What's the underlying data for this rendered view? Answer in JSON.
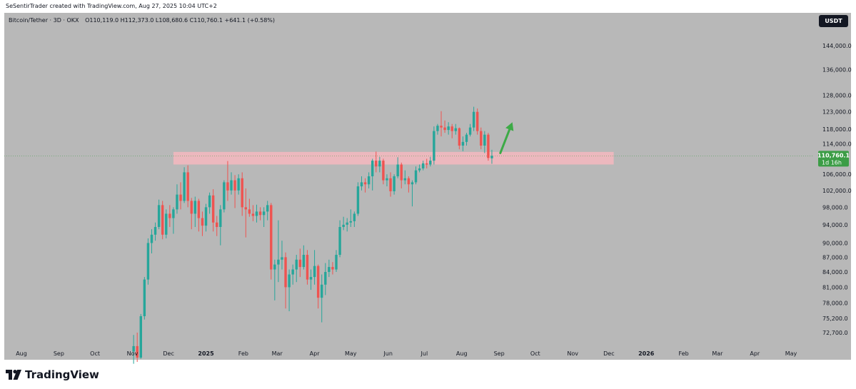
{
  "header": {
    "attribution": "SeSentirTrader created with TradingView.com, Aug 27, 2025 10:04 UTC+2"
  },
  "legend": {
    "symbol": "Bitcoin/Tether · 3D · OKX",
    "open": "O110,119.0",
    "high": "H112,373.0",
    "low": "L108,680.6",
    "close": "C110,760.1",
    "change": "+641.1 (+0.58%)"
  },
  "currency_button": "USDT",
  "price_label": {
    "price": "110,760.1",
    "countdown": "1d 16h"
  },
  "footer": {
    "brand": "TradingView"
  },
  "colors": {
    "background": "#b8b8b8",
    "up": "#26a69a",
    "down": "#ef5350",
    "zone": "#f4b7be",
    "arrow": "#3daa46",
    "price_badge": "#3c9d46"
  },
  "chart_data": {
    "type": "candlestick",
    "symbol": "Bitcoin/Tether",
    "timeframe": "3D",
    "exchange": "OKX",
    "y_scale": "log",
    "y_ticks": [
      "144,000.0",
      "136,000.0",
      "128,000.0",
      "123,000.0",
      "118,000.0",
      "114,000.0",
      "110,760.1",
      "106,000.0",
      "102,000.0",
      "98,000.0",
      "94,000.0",
      "90,000.0",
      "87,000.0",
      "84,000.0",
      "81,000.0",
      "78,000.0",
      "75,200.0",
      "72,700.0"
    ],
    "y_tick_values": [
      144000,
      136000,
      128000,
      123000,
      118000,
      114000,
      106000,
      102000,
      98000,
      94000,
      90000,
      87000,
      84000,
      81000,
      78000,
      75200,
      72700
    ],
    "x_ticks": [
      {
        "label": "Aug",
        "date": "2024-08-01"
      },
      {
        "label": "Sep",
        "date": "2024-09-01"
      },
      {
        "label": "Oct",
        "date": "2024-10-01"
      },
      {
        "label": "Nov",
        "date": "2024-11-01"
      },
      {
        "label": "Dec",
        "date": "2024-12-01"
      },
      {
        "label": "2025",
        "date": "2025-01-01",
        "bold": true
      },
      {
        "label": "Feb",
        "date": "2025-02-01"
      },
      {
        "label": "Mar",
        "date": "2025-03-01"
      },
      {
        "label": "Apr",
        "date": "2025-04-01"
      },
      {
        "label": "May",
        "date": "2025-05-01"
      },
      {
        "label": "Jun",
        "date": "2025-06-01"
      },
      {
        "label": "Jul",
        "date": "2025-07-01"
      },
      {
        "label": "Aug",
        "date": "2025-08-01"
      },
      {
        "label": "Sep",
        "date": "2025-09-01"
      },
      {
        "label": "Oct",
        "date": "2025-10-01"
      },
      {
        "label": "Nov",
        "date": "2025-11-01"
      },
      {
        "label": "Dec",
        "date": "2025-12-01"
      },
      {
        "label": "2026",
        "date": "2026-01-01",
        "bold": true
      },
      {
        "label": "Feb",
        "date": "2026-02-01"
      },
      {
        "label": "Mar",
        "date": "2026-03-01"
      },
      {
        "label": "Apr",
        "date": "2026-04-01"
      },
      {
        "label": "May",
        "date": "2026-05-01"
      }
    ],
    "last_price": 110760.1,
    "zone": {
      "from_date": "2024-12-05",
      "to_date": "2025-12-05",
      "low": 108500,
      "high": 111800
    },
    "arrow": {
      "from_date": "2025-09-02",
      "from_price": 111500,
      "to_date": "2025-09-12",
      "to_price": 120000
    },
    "candles": [
      {
        "t": "2024-11-02",
        "o": 69500,
        "h": 72300,
        "l": 67500,
        "c": 70400
      },
      {
        "t": "2024-11-05",
        "o": 70400,
        "h": 72700,
        "l": 67800,
        "c": 68500
      },
      {
        "t": "2024-11-08",
        "o": 68500,
        "h": 76000,
        "l": 68300,
        "c": 75600
      },
      {
        "t": "2024-11-11",
        "o": 75600,
        "h": 83000,
        "l": 75000,
        "c": 82500
      },
      {
        "t": "2024-11-14",
        "o": 82500,
        "h": 91000,
        "l": 81500,
        "c": 90000
      },
      {
        "t": "2024-11-17",
        "o": 90000,
        "h": 93000,
        "l": 87800,
        "c": 91800
      },
      {
        "t": "2024-11-20",
        "o": 91800,
        "h": 94500,
        "l": 90500,
        "c": 93500
      },
      {
        "t": "2024-11-23",
        "o": 93500,
        "h": 99800,
        "l": 93000,
        "c": 98500
      },
      {
        "t": "2024-11-26",
        "o": 98500,
        "h": 99500,
        "l": 90800,
        "c": 91800
      },
      {
        "t": "2024-11-29",
        "o": 91800,
        "h": 97500,
        "l": 91000,
        "c": 96500
      },
      {
        "t": "2024-12-02",
        "o": 96500,
        "h": 98500,
        "l": 93500,
        "c": 95500
      },
      {
        "t": "2024-12-05",
        "o": 95500,
        "h": 98000,
        "l": 92000,
        "c": 97500
      },
      {
        "t": "2024-12-08",
        "o": 97500,
        "h": 103500,
        "l": 96500,
        "c": 101000
      },
      {
        "t": "2024-12-11",
        "o": 101000,
        "h": 104000,
        "l": 97500,
        "c": 99500
      },
      {
        "t": "2024-12-14",
        "o": 99500,
        "h": 107800,
        "l": 99000,
        "c": 106500
      },
      {
        "t": "2024-12-17",
        "o": 106500,
        "h": 108300,
        "l": 98000,
        "c": 99500
      },
      {
        "t": "2024-12-20",
        "o": 99500,
        "h": 100200,
        "l": 93000,
        "c": 96500
      },
      {
        "t": "2024-12-23",
        "o": 96500,
        "h": 100500,
        "l": 93500,
        "c": 99500
      },
      {
        "t": "2024-12-26",
        "o": 99500,
        "h": 100000,
        "l": 92500,
        "c": 95500
      },
      {
        "t": "2024-12-29",
        "o": 95500,
        "h": 97000,
        "l": 91500,
        "c": 93800
      },
      {
        "t": "2025-01-01",
        "o": 93800,
        "h": 98800,
        "l": 92500,
        "c": 98000
      },
      {
        "t": "2025-01-04",
        "o": 98000,
        "h": 101500,
        "l": 96500,
        "c": 100800
      },
      {
        "t": "2025-01-07",
        "o": 100800,
        "h": 102300,
        "l": 92500,
        "c": 94500
      },
      {
        "t": "2025-01-10",
        "o": 94500,
        "h": 96000,
        "l": 91500,
        "c": 93500
      },
      {
        "t": "2025-01-13",
        "o": 93500,
        "h": 98500,
        "l": 89500,
        "c": 97500
      },
      {
        "t": "2025-01-16",
        "o": 97500,
        "h": 104500,
        "l": 96800,
        "c": 104000
      },
      {
        "t": "2025-01-19",
        "o": 104000,
        "h": 109400,
        "l": 99500,
        "c": 102000
      },
      {
        "t": "2025-01-22",
        "o": 102000,
        "h": 106500,
        "l": 101000,
        "c": 104500
      },
      {
        "t": "2025-01-25",
        "o": 104500,
        "h": 105800,
        "l": 97800,
        "c": 102000
      },
      {
        "t": "2025-01-28",
        "o": 102000,
        "h": 106000,
        "l": 101000,
        "c": 105000
      },
      {
        "t": "2025-01-31",
        "o": 105000,
        "h": 106500,
        "l": 96000,
        "c": 98000
      },
      {
        "t": "2025-02-03",
        "o": 98000,
        "h": 102500,
        "l": 91200,
        "c": 97500
      },
      {
        "t": "2025-02-06",
        "o": 97500,
        "h": 100000,
        "l": 95800,
        "c": 96500
      },
      {
        "t": "2025-02-09",
        "o": 96500,
        "h": 98500,
        "l": 94800,
        "c": 96000
      },
      {
        "t": "2025-02-12",
        "o": 96000,
        "h": 98600,
        "l": 94500,
        "c": 97000
      },
      {
        "t": "2025-02-15",
        "o": 97000,
        "h": 98000,
        "l": 95000,
        "c": 96200
      },
      {
        "t": "2025-02-18",
        "o": 96200,
        "h": 98000,
        "l": 93500,
        "c": 97000
      },
      {
        "t": "2025-02-21",
        "o": 97000,
        "h": 99500,
        "l": 95000,
        "c": 98500
      },
      {
        "t": "2025-02-24",
        "o": 98500,
        "h": 99000,
        "l": 82500,
        "c": 84500
      },
      {
        "t": "2025-02-27",
        "o": 84500,
        "h": 86500,
        "l": 78500,
        "c": 85500
      },
      {
        "t": "2025-03-02",
        "o": 85500,
        "h": 95000,
        "l": 82000,
        "c": 86500
      },
      {
        "t": "2025-03-05",
        "o": 86500,
        "h": 90500,
        "l": 84500,
        "c": 87000
      },
      {
        "t": "2025-03-08",
        "o": 87000,
        "h": 88000,
        "l": 77000,
        "c": 81000
      },
      {
        "t": "2025-03-11",
        "o": 81000,
        "h": 84500,
        "l": 76500,
        "c": 83500
      },
      {
        "t": "2025-03-14",
        "o": 83500,
        "h": 85500,
        "l": 81500,
        "c": 84500
      },
      {
        "t": "2025-03-17",
        "o": 84500,
        "h": 87500,
        "l": 82000,
        "c": 86500
      },
      {
        "t": "2025-03-20",
        "o": 86500,
        "h": 88800,
        "l": 83000,
        "c": 85000
      },
      {
        "t": "2025-03-23",
        "o": 85000,
        "h": 89500,
        "l": 84500,
        "c": 87500
      },
      {
        "t": "2025-03-26",
        "o": 87500,
        "h": 88500,
        "l": 81500,
        "c": 82500
      },
      {
        "t": "2025-03-29",
        "o": 82500,
        "h": 84500,
        "l": 80500,
        "c": 83000
      },
      {
        "t": "2025-04-01",
        "o": 83000,
        "h": 88500,
        "l": 81500,
        "c": 85200
      },
      {
        "t": "2025-04-04",
        "o": 85200,
        "h": 85500,
        "l": 77000,
        "c": 79000
      },
      {
        "t": "2025-04-07",
        "o": 79000,
        "h": 83500,
        "l": 74500,
        "c": 81500
      },
      {
        "t": "2025-04-10",
        "o": 81500,
        "h": 85800,
        "l": 79500,
        "c": 84000
      },
      {
        "t": "2025-04-13",
        "o": 84000,
        "h": 86500,
        "l": 83000,
        "c": 85000
      },
      {
        "t": "2025-04-16",
        "o": 85000,
        "h": 86000,
        "l": 83500,
        "c": 84500
      },
      {
        "t": "2025-04-19",
        "o": 84500,
        "h": 88500,
        "l": 84000,
        "c": 87500
      },
      {
        "t": "2025-04-22",
        "o": 87500,
        "h": 95000,
        "l": 87000,
        "c": 93500
      },
      {
        "t": "2025-04-25",
        "o": 93500,
        "h": 95800,
        "l": 92800,
        "c": 94000
      },
      {
        "t": "2025-04-28",
        "o": 94000,
        "h": 95500,
        "l": 92500,
        "c": 94500
      },
      {
        "t": "2025-05-01",
        "o": 94500,
        "h": 97500,
        "l": 93500,
        "c": 94800
      },
      {
        "t": "2025-05-04",
        "o": 94800,
        "h": 97000,
        "l": 93500,
        "c": 96500
      },
      {
        "t": "2025-05-07",
        "o": 96500,
        "h": 104000,
        "l": 96000,
        "c": 103000
      },
      {
        "t": "2025-05-10",
        "o": 103000,
        "h": 105500,
        "l": 102000,
        "c": 104000
      },
      {
        "t": "2025-05-13",
        "o": 104000,
        "h": 105000,
        "l": 101500,
        "c": 103500
      },
      {
        "t": "2025-05-16",
        "o": 103500,
        "h": 106500,
        "l": 102500,
        "c": 105500
      },
      {
        "t": "2025-05-19",
        "o": 105500,
        "h": 110000,
        "l": 102000,
        "c": 109500
      },
      {
        "t": "2025-05-22",
        "o": 109500,
        "h": 111900,
        "l": 106500,
        "c": 108000
      },
      {
        "t": "2025-05-25",
        "o": 108000,
        "h": 110500,
        "l": 106500,
        "c": 109500
      },
      {
        "t": "2025-05-28",
        "o": 109500,
        "h": 110000,
        "l": 103500,
        "c": 104500
      },
      {
        "t": "2025-05-31",
        "o": 104500,
        "h": 106000,
        "l": 103000,
        "c": 105000
      },
      {
        "t": "2025-06-03",
        "o": 105000,
        "h": 106500,
        "l": 100500,
        "c": 101800
      },
      {
        "t": "2025-06-06",
        "o": 101800,
        "h": 106000,
        "l": 101000,
        "c": 105500
      },
      {
        "t": "2025-06-09",
        "o": 105500,
        "h": 110400,
        "l": 105000,
        "c": 108500
      },
      {
        "t": "2025-06-12",
        "o": 108500,
        "h": 109000,
        "l": 102500,
        "c": 104500
      },
      {
        "t": "2025-06-15",
        "o": 104500,
        "h": 107000,
        "l": 103500,
        "c": 105000
      },
      {
        "t": "2025-06-18",
        "o": 105000,
        "h": 105500,
        "l": 101500,
        "c": 103500
      },
      {
        "t": "2025-06-21",
        "o": 103500,
        "h": 104500,
        "l": 98200,
        "c": 104000
      },
      {
        "t": "2025-06-24",
        "o": 104000,
        "h": 108000,
        "l": 103500,
        "c": 107000
      },
      {
        "t": "2025-06-27",
        "o": 107000,
        "h": 108500,
        "l": 106500,
        "c": 107500
      },
      {
        "t": "2025-06-30",
        "o": 107500,
        "h": 109500,
        "l": 107000,
        "c": 108800
      },
      {
        "t": "2025-07-03",
        "o": 108800,
        "h": 110000,
        "l": 107500,
        "c": 108500
      },
      {
        "t": "2025-07-06",
        "o": 108500,
        "h": 110500,
        "l": 108000,
        "c": 109500
      },
      {
        "t": "2025-07-09",
        "o": 109500,
        "h": 118800,
        "l": 108500,
        "c": 117500
      },
      {
        "t": "2025-07-12",
        "o": 117500,
        "h": 119500,
        "l": 116500,
        "c": 119000
      },
      {
        "t": "2025-07-15",
        "o": 119000,
        "h": 123200,
        "l": 116000,
        "c": 118500
      },
      {
        "t": "2025-07-18",
        "o": 118500,
        "h": 120500,
        "l": 117000,
        "c": 117800
      },
      {
        "t": "2025-07-21",
        "o": 117800,
        "h": 120000,
        "l": 116500,
        "c": 118800
      },
      {
        "t": "2025-07-24",
        "o": 118800,
        "h": 119500,
        "l": 115500,
        "c": 117500
      },
      {
        "t": "2025-07-27",
        "o": 117500,
        "h": 119500,
        "l": 116500,
        "c": 118300
      },
      {
        "t": "2025-07-30",
        "o": 118300,
        "h": 118500,
        "l": 112500,
        "c": 113500
      },
      {
        "t": "2025-08-02",
        "o": 113500,
        "h": 116000,
        "l": 112000,
        "c": 114500
      },
      {
        "t": "2025-08-05",
        "o": 114500,
        "h": 117000,
        "l": 113500,
        "c": 116500
      },
      {
        "t": "2025-08-08",
        "o": 116500,
        "h": 119500,
        "l": 116000,
        "c": 118500
      },
      {
        "t": "2025-08-11",
        "o": 118500,
        "h": 124500,
        "l": 117500,
        "c": 123000
      },
      {
        "t": "2025-08-14",
        "o": 123000,
        "h": 124000,
        "l": 116500,
        "c": 117500
      },
      {
        "t": "2025-08-17",
        "o": 117500,
        "h": 118500,
        "l": 112500,
        "c": 113500
      },
      {
        "t": "2025-08-20",
        "o": 113500,
        "h": 117500,
        "l": 111500,
        "c": 116500
      },
      {
        "t": "2025-08-23",
        "o": 116500,
        "h": 117000,
        "l": 109500,
        "c": 110200
      },
      {
        "t": "2025-08-26",
        "o": 110119,
        "h": 112373,
        "l": 108680.6,
        "c": 110760.1
      }
    ]
  }
}
